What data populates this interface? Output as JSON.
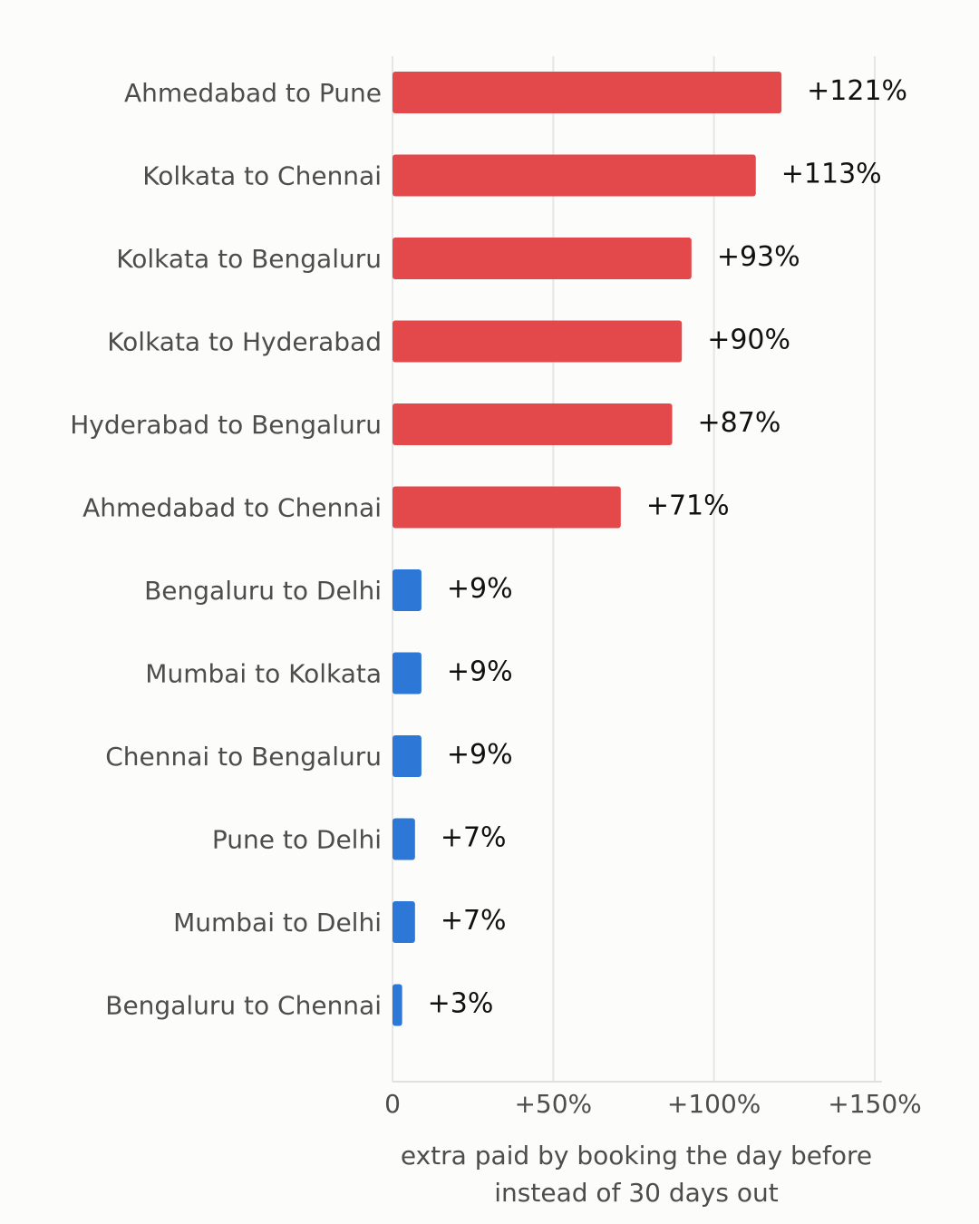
{
  "chart_data": {
    "type": "bar",
    "orientation": "horizontal",
    "categories": [
      "Ahmedabad to Pune",
      "Kolkata to Chennai",
      "Kolkata to Bengaluru",
      "Kolkata to Hyderabad",
      "Hyderabad to Bengaluru",
      "Ahmedabad to Chennai",
      "Bengaluru to Delhi",
      "Mumbai to Kolkata",
      "Chennai to Bengaluru",
      "Pune to Delhi",
      "Mumbai to Delhi",
      "Bengaluru to Chennai"
    ],
    "values": [
      121,
      113,
      93,
      90,
      87,
      71,
      9,
      9,
      9,
      7,
      7,
      3
    ],
    "value_labels": [
      "+121%",
      "+113%",
      "+93%",
      "+90%",
      "+87%",
      "+71%",
      "+9%",
      "+9%",
      "+9%",
      "+7%",
      "+7%",
      "+3%"
    ],
    "bar_colors": [
      "#e3494b",
      "#e3494b",
      "#e3494b",
      "#e3494b",
      "#e3494b",
      "#e3494b",
      "#2d78d6",
      "#2d78d6",
      "#2d78d6",
      "#2d78d6",
      "#2d78d6",
      "#2d78d6"
    ],
    "xlim": [
      0,
      150
    ],
    "xticks": [
      0,
      50,
      100,
      150
    ],
    "xtick_labels": [
      "0",
      "+50%",
      "+100%",
      "+150%"
    ],
    "xlabel_lines": [
      "extra paid by booking the day before",
      "instead of 30 days out"
    ],
    "grid": "vertical",
    "colors": {
      "high": "#e3494b",
      "low": "#2d78d6"
    }
  }
}
